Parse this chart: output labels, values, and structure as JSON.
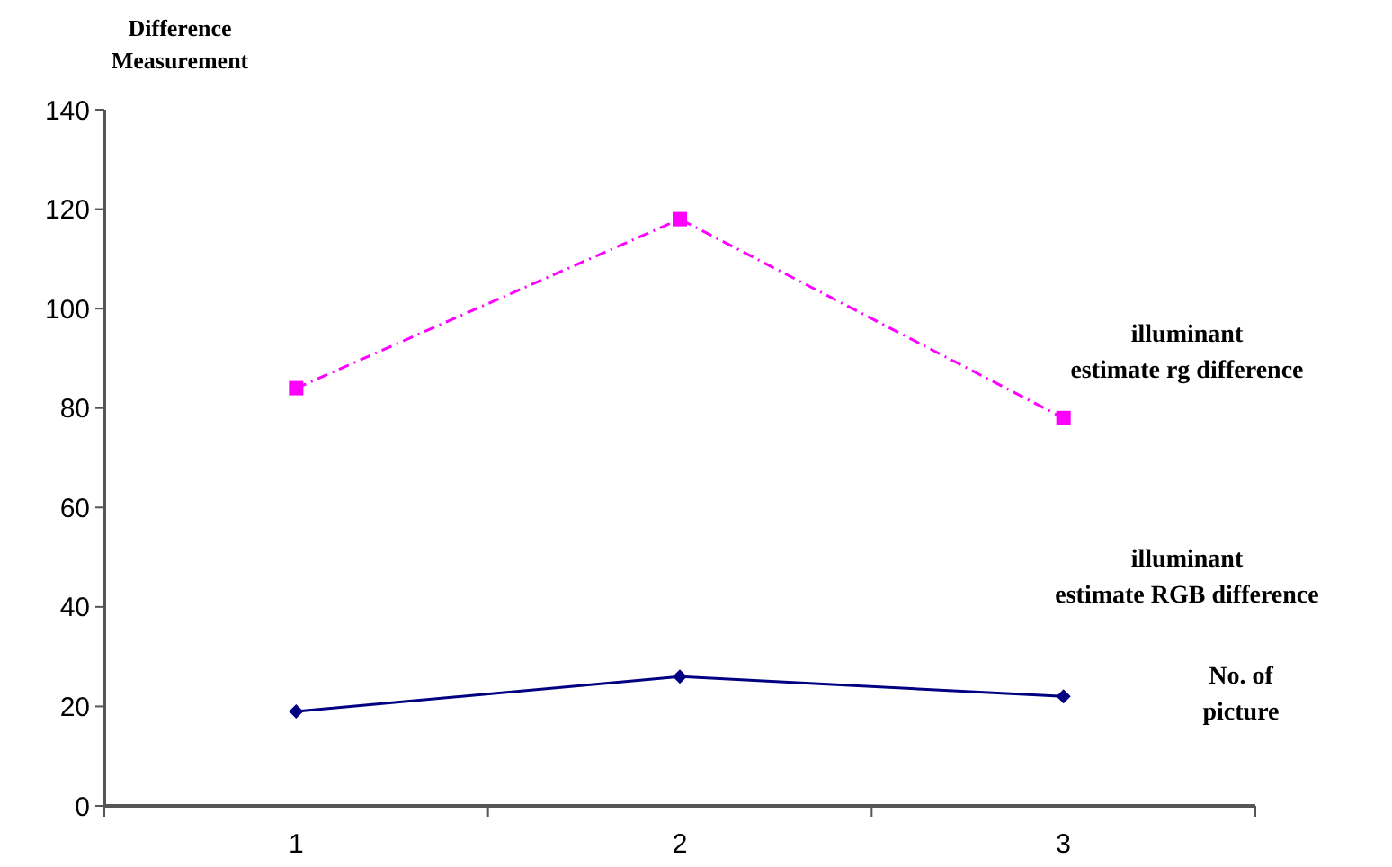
{
  "chart_data": {
    "type": "line",
    "ylabel": "Difference Measurement",
    "xlabel": "No. of picture",
    "categories": [
      "1",
      "2",
      "3"
    ],
    "ylim": [
      0,
      140
    ],
    "yticks": [
      0,
      20,
      40,
      60,
      80,
      100,
      120,
      140
    ],
    "grid": false,
    "legend": "right",
    "series": [
      {
        "name": "illuminant estimate rg difference",
        "color": "#ff00ff",
        "values": [
          84,
          118,
          78
        ],
        "marker": "square",
        "line_style": "dashed"
      },
      {
        "name": "illuminant estimate RGB difference",
        "color": "#000080",
        "values": [
          19,
          26,
          22
        ],
        "marker": "diamond",
        "line_style": "solid"
      }
    ]
  }
}
